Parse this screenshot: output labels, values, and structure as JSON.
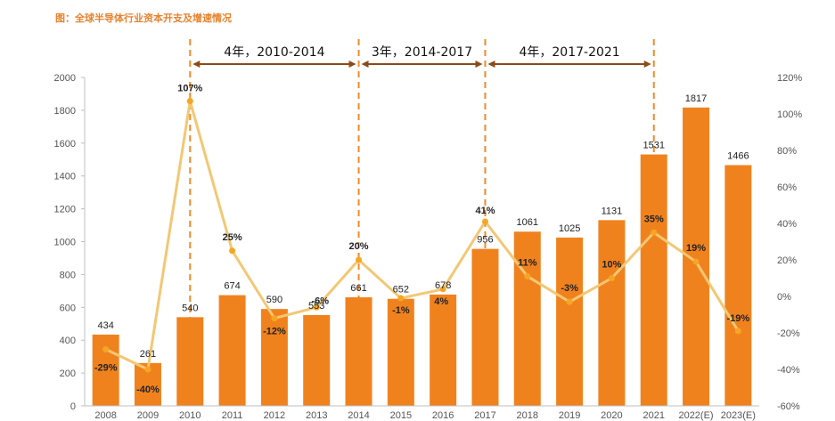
{
  "caption": "图：全球半导体行业资本开支及增速情况",
  "chart_data": {
    "type": "bar",
    "categories": [
      "2008",
      "2009",
      "2010",
      "2011",
      "2012",
      "2013",
      "2014",
      "2015",
      "2016",
      "2017",
      "2018",
      "2019",
      "2020",
      "2021",
      "2022(E)",
      "2023(E)"
    ],
    "series": [
      {
        "type": "bar",
        "values": [
          434,
          261,
          540,
          674,
          590,
          553,
          661,
          652,
          678,
          956,
          1061,
          1025,
          1131,
          1531,
          1817,
          1466
        ],
        "labels": [
          "434",
          "261",
          "540",
          "674",
          "590",
          "553",
          "661",
          "652",
          "678",
          "956",
          "1061",
          "1025",
          "1131",
          "1531",
          "1817",
          "1466"
        ],
        "color": "#f0821e"
      },
      {
        "type": "line",
        "axis": "right",
        "values": [
          -29,
          -40,
          107,
          25,
          -12,
          -6,
          20,
          -1,
          4,
          41,
          11,
          -3,
          10,
          35,
          19,
          -19
        ],
        "labels": [
          "-29%",
          "-40%",
          "107%",
          "25%",
          "-12%",
          "-6%",
          "20%",
          "-1%",
          "4%",
          "41%",
          "11%",
          "-3%",
          "10%",
          "35%",
          "19%",
          "-19%"
        ],
        "color": "#f3c774"
      }
    ],
    "ylim": [
      0,
      2000
    ],
    "yticks": [
      "0",
      "200",
      "400",
      "600",
      "800",
      "1000",
      "1200",
      "1400",
      "1600",
      "1800",
      "2000"
    ],
    "y2lim": [
      -60,
      120
    ],
    "y2ticks": [
      "-60%",
      "-40%",
      "-20%",
      "0%",
      "20%",
      "40%",
      "60%",
      "80%",
      "100%",
      "120%"
    ],
    "periods": [
      {
        "label": "4年，2010-2014",
        "from": "2010",
        "to": "2014"
      },
      {
        "label": "3年，2014-2017",
        "from": "2014",
        "to": "2017"
      },
      {
        "label": "4年，2017-2021",
        "from": "2017",
        "to": "2021"
      }
    ],
    "grid": false,
    "legend": "none"
  }
}
